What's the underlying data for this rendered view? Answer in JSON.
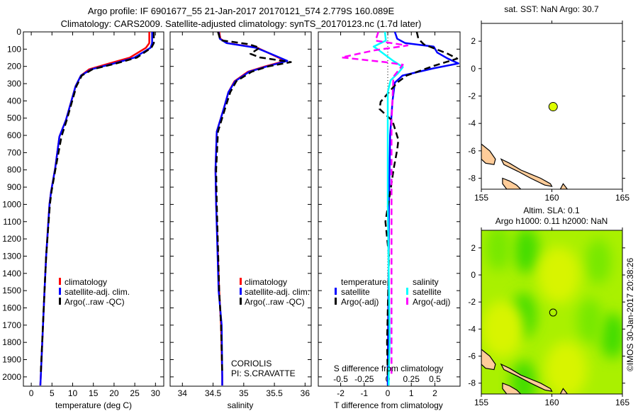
{
  "header": {
    "title_line1": "Argo profile: IF 6901677_55 21-Jan-2017 20170121_574 2.779S 160.089E",
    "title_line2": "Climatology: CARS2009. Satellite-adjusted climatology: synTS_20170123.nc (1.7d later)"
  },
  "colors": {
    "climatology": "#ff0000",
    "satellite": "#0000ff",
    "argo": "#000000",
    "sal_satellite": "#00ffff",
    "sal_argo": "#ff00ff",
    "land": "#ffcc99"
  },
  "chart_data": [
    {
      "id": "temperature",
      "type": "line",
      "xlabel": "temperature (deg C)",
      "ylabel": "",
      "xlim": [
        -1.9,
        32.0
      ],
      "ylim": [
        2054,
        0
      ],
      "xticks": [
        0,
        5,
        10,
        15,
        20,
        25,
        30
      ],
      "yticks": [
        0,
        100,
        200,
        300,
        400,
        500,
        600,
        700,
        800,
        900,
        1000,
        1100,
        1200,
        1300,
        1400,
        1500,
        1600,
        1700,
        1800,
        1900,
        2000
      ],
      "legend": [
        "climatology",
        "satellite-adj. clim.",
        "Argo(..raw -QC)"
      ],
      "series": [
        {
          "name": "climatology",
          "color": "#ff0000",
          "dash": false,
          "depth": [
            0,
            65,
            92,
            149,
            183,
            217,
            253,
            315,
            509,
            607,
            787,
            925,
            1000,
            1300,
            1500,
            2000,
            2050
          ],
          "values": [
            28.5,
            28.5,
            27.7,
            23.8,
            18.9,
            14.0,
            12.0,
            10.7,
            8.4,
            6.8,
            5.8,
            4.8,
            4.4,
            3.6,
            3.2,
            2.3,
            2.2
          ]
        },
        {
          "name": "satellite-adj. clim.",
          "color": "#0000ff",
          "dash": false,
          "depth": [
            0,
            65,
            92,
            149,
            183,
            217,
            253,
            315,
            509,
            607,
            787,
            925,
            1000,
            1300,
            1500,
            2000,
            2050
          ],
          "values": [
            29.2,
            29.2,
            28.8,
            24.9,
            20.0,
            14.5,
            12.0,
            10.7,
            8.4,
            6.8,
            5.8,
            4.8,
            4.4,
            3.6,
            3.2,
            2.3,
            2.2
          ]
        },
        {
          "name": "Argo(..raw -QC)",
          "color": "#000000",
          "dash": true,
          "depth": [
            0,
            65,
            92,
            149,
            183,
            217,
            253,
            315,
            509,
            607,
            787,
            925,
            1000,
            1300,
            1500,
            1980
          ],
          "values": [
            29.6,
            29.6,
            29.0,
            25.5,
            20.5,
            14.8,
            12.2,
            10.9,
            8.6,
            7.3,
            5.9,
            4.9,
            4.5,
            3.6,
            3.2,
            2.3
          ]
        }
      ]
    },
    {
      "id": "salinity",
      "type": "line",
      "xlabel": "salinity",
      "xlim": [
        33.8,
        36.1
      ],
      "ylim": [
        2054,
        0
      ],
      "xticks": [
        34,
        34.5,
        35,
        35.5,
        36
      ],
      "legend": [
        "climatology",
        "satellite-adj. clim.",
        "Argo(..raw -QC)"
      ],
      "annotations": [
        "CORIOLIS",
        "PI: S.CRAVATTE"
      ],
      "series": [
        {
          "name": "climatology",
          "color": "#ff0000",
          "dash": false,
          "depth": [
            0,
            40,
            65,
            92,
            130,
            168,
            200,
            231,
            286,
            350,
            439,
            578,
            800,
            1000,
            1500,
            1700,
            2000,
            2050
          ],
          "values": [
            34.6,
            34.62,
            34.73,
            35.22,
            35.45,
            35.68,
            35.35,
            35.07,
            34.85,
            34.75,
            34.68,
            34.56,
            34.54,
            34.55,
            34.6,
            34.63,
            34.65,
            34.65
          ]
        },
        {
          "name": "satellite-adj. clim.",
          "color": "#0000ff",
          "dash": false,
          "depth": [
            0,
            40,
            65,
            92,
            130,
            168,
            200,
            231,
            286,
            350,
            439,
            578,
            800,
            1000,
            1500,
            1700,
            2000,
            2050
          ],
          "values": [
            34.59,
            34.61,
            34.72,
            35.2,
            35.46,
            35.71,
            35.38,
            35.09,
            34.86,
            34.75,
            34.68,
            34.56,
            34.54,
            34.55,
            34.59,
            34.64,
            34.65,
            34.65
          ]
        },
        {
          "name": "Argo(..raw -QC)",
          "color": "#000000",
          "dash": true,
          "depth": [
            0,
            48,
            71,
            92,
            127,
            148,
            175,
            200,
            231,
            286,
            350,
            439,
            578,
            800,
            1000,
            1500,
            1700,
            1980
          ],
          "values": [
            34.58,
            34.62,
            35.08,
            35.26,
            35.11,
            35.26,
            35.77,
            35.4,
            35.13,
            34.88,
            34.78,
            34.7,
            34.58,
            34.55,
            34.56,
            34.6,
            34.63,
            34.65
          ]
        }
      ]
    },
    {
      "id": "difference",
      "type": "line",
      "xlabel": "T difference from climatology",
      "x2label": "S difference from climatology",
      "xlim": [
        -2.95,
        3.07
      ],
      "x2_scale": 0.25,
      "ylim": [
        2054,
        0
      ],
      "xticks": [
        -2,
        -1,
        0,
        1,
        2
      ],
      "x2ticks": [
        -0.5,
        -0.25,
        0,
        0.25,
        0.5
      ],
      "x2ticklabels": [
        "-0.5",
        "-0.25",
        "0",
        "0.25",
        "0.5"
      ],
      "legend_headers": [
        "temperature",
        "salinity"
      ],
      "legend": [
        "satellite",
        "Argo(-adj)",
        "satellite",
        "Argo(-adj)"
      ],
      "series": [
        {
          "name": "T satellite",
          "axis": "T",
          "color": "#0000ff",
          "dash": false,
          "depth": [
            0,
            40,
            65,
            85,
            120,
            155,
            183,
            211,
            253,
            294,
            400,
            600,
            1000,
            1500,
            2000,
            2050
          ],
          "values": [
            0.3,
            0.4,
            0.74,
            1.95,
            2.1,
            2.55,
            3.0,
            1.95,
            0.63,
            0.3,
            0.2,
            0.1,
            0.05,
            0.03,
            0,
            0
          ]
        },
        {
          "name": "T Argo(-adj)",
          "axis": "T",
          "color": "#000000",
          "dash": true,
          "depth": [
            0,
            40,
            72,
            127,
            155,
            197,
            253,
            294,
            405,
            447,
            516,
            627,
            683,
            794,
            933,
            1100,
            1300,
            1800,
            2000
          ],
          "values": [
            1.23,
            1.3,
            1.53,
            2.55,
            2.95,
            1.95,
            0.8,
            0.4,
            -0.3,
            -0.35,
            0.2,
            0.45,
            0.4,
            0.25,
            0.1,
            -0.1,
            0.05,
            -0.03,
            0
          ]
        },
        {
          "name": "S satellite",
          "axis": "S",
          "color": "#00ffff",
          "dash": false,
          "depth": [
            0,
            50,
            85,
            100,
            120,
            169,
            204,
            239,
            281,
            350,
            1000,
            1800,
            2000,
            2050
          ],
          "values": [
            -0.03,
            -0.02,
            -0.15,
            -0.11,
            -0.06,
            0.06,
            0.16,
            0.11,
            0.03,
            0,
            0,
            0.02,
            0.01,
            0.01
          ]
        },
        {
          "name": "S Argo(-adj)",
          "axis": "S",
          "color": "#ff00ff",
          "dash": true,
          "depth": [
            0,
            51,
            79,
            107,
            148,
            176,
            190,
            260,
            526,
            1000,
            2000
          ],
          "values": [
            -0.1,
            -0.13,
            0.21,
            -0.14,
            -0.49,
            -0.02,
            0.16,
            0.06,
            0.04,
            0.04,
            0.04
          ]
        }
      ]
    },
    {
      "id": "map_sst",
      "type": "scatter",
      "title": "sat. SST: NaN Argo: 30.7",
      "xlim": [
        155,
        165
      ],
      "ylim": [
        -8.8,
        3.3
      ],
      "xticks": [
        155,
        160,
        165
      ],
      "yticks": [
        2,
        0,
        -2,
        -4,
        -6,
        -8
      ],
      "float_position": {
        "lon": 160.089,
        "lat": -2.779,
        "color": "#ddff00"
      }
    },
    {
      "id": "map_sla",
      "type": "heatmap",
      "title_line1": "Altim. SLA: 0.1",
      "title_line2": "Argo h1000: 0.11 h2000: NaN",
      "xlim": [
        155,
        165
      ],
      "ylim": [
        -8.8,
        3.3
      ],
      "xticks": [
        155,
        160,
        165
      ],
      "yticks": [
        2,
        0,
        -2,
        -4,
        -6,
        -8
      ],
      "float_position": {
        "lon": 160.089,
        "lat": -2.779
      },
      "blobs": [
        {
          "lon": 158.2,
          "lat": 1.8,
          "level": "high"
        },
        {
          "lon": 158.0,
          "lat": -3.0,
          "level": "high"
        },
        {
          "lon": 164.3,
          "lat": -4.5,
          "level": "high"
        },
        {
          "lon": 156.2,
          "lat": 2.0,
          "level": "mid"
        },
        {
          "lon": 163.3,
          "lat": 1.0,
          "level": "mid"
        },
        {
          "lon": 162.7,
          "lat": -3.4,
          "level": "mid"
        },
        {
          "lon": 158.0,
          "lat": -8.0,
          "level": "high"
        },
        {
          "lon": 160.5,
          "lat": 0.0,
          "level": "low"
        },
        {
          "lon": 161.0,
          "lat": -7.0,
          "level": "low"
        },
        {
          "lon": 156.5,
          "lat": -4.0,
          "level": "low"
        }
      ]
    }
  ],
  "land": [
    [
      [
        155,
        -5.5
      ],
      [
        155.6,
        -6.0
      ],
      [
        156,
        -6.6
      ],
      [
        155.9,
        -7.0
      ],
      [
        155.3,
        -6.9
      ],
      [
        155,
        -6.6
      ]
    ],
    [
      [
        156.4,
        -6.6
      ],
      [
        157,
        -6.9
      ],
      [
        157.8,
        -7.4
      ],
      [
        158.5,
        -7.7
      ],
      [
        159.2,
        -8.0
      ],
      [
        159.9,
        -8.4
      ],
      [
        160,
        -8.6
      ],
      [
        159.5,
        -8.5
      ],
      [
        158.5,
        -8.0
      ],
      [
        157.6,
        -7.5
      ],
      [
        156.6,
        -7.0
      ]
    ],
    [
      [
        156.5,
        -8.0
      ],
      [
        157,
        -8.2
      ],
      [
        157.5,
        -8.5
      ],
      [
        157.8,
        -8.8
      ],
      [
        156.8,
        -8.8
      ],
      [
        156.5,
        -8.4
      ]
    ],
    [
      [
        160.8,
        -8.4
      ],
      [
        161.1,
        -8.8
      ],
      [
        160.6,
        -8.8
      ]
    ]
  ],
  "footer": {
    "credit": "©IMOS 30-Jan-2017 20:38:26"
  }
}
